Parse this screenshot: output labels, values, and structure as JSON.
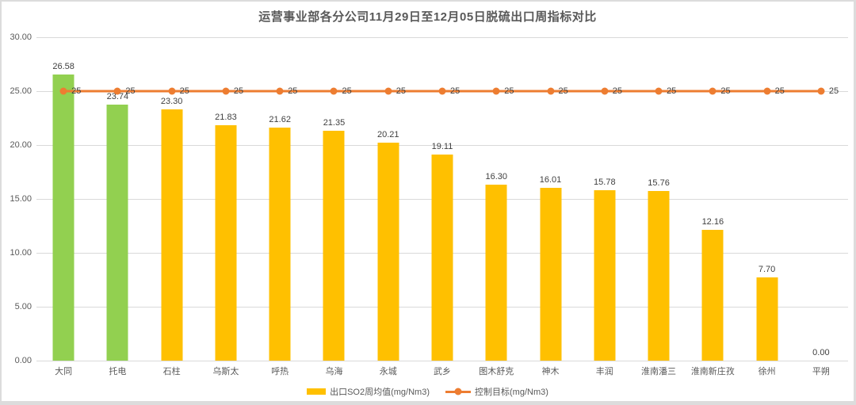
{
  "chart_data": {
    "type": "bar",
    "title": "运营事业部各分公司11月29日至12月05日脱硫出口周指标对比",
    "categories": [
      "大同",
      "托电",
      "石柱",
      "乌斯太",
      "呼热",
      "乌海",
      "永城",
      "武乡",
      "图木舒克",
      "神木",
      "丰润",
      "淮南潘三",
      "淮南新庄孜",
      "徐州",
      "平朔"
    ],
    "series": [
      {
        "name": "出口SO2周均值(mg/Nm3)",
        "type": "bar",
        "values": [
          26.58,
          23.74,
          23.3,
          21.83,
          21.62,
          21.35,
          20.21,
          19.11,
          16.3,
          16.01,
          15.78,
          15.76,
          12.16,
          7.7,
          0.0
        ]
      },
      {
        "name": "控制目标(mg/Nm3)",
        "type": "line",
        "values": [
          25,
          25,
          25,
          25,
          25,
          25,
          25,
          25,
          25,
          25,
          25,
          25,
          25,
          25,
          25
        ]
      }
    ],
    "xlabel": "",
    "ylabel": "",
    "ylim": [
      0,
      30
    ],
    "y_ticks": [
      "30.00",
      "25.00",
      "20.00",
      "15.00",
      "10.00",
      "5.00",
      "0.00"
    ],
    "grid": true,
    "legend_position": "bottom",
    "target_point_label": "25",
    "value_label_decimals": 2
  },
  "legend": [
    {
      "label": "出口SO2周均值(mg/Nm3)"
    },
    {
      "label": "控制目标(mg/Nm3)"
    }
  ],
  "colors": {
    "bar_default": "#FFC000",
    "bar_highlight": "#92D050",
    "highlight_indices": [
      0,
      1
    ],
    "target_line": "#ED7D31",
    "gridline": "#D9D9D9",
    "title_text": "#595959",
    "axis_text": "#595959",
    "value_label_text": "#404040",
    "frame_border": "#DCDCDC",
    "background": "#FFFFFF"
  }
}
